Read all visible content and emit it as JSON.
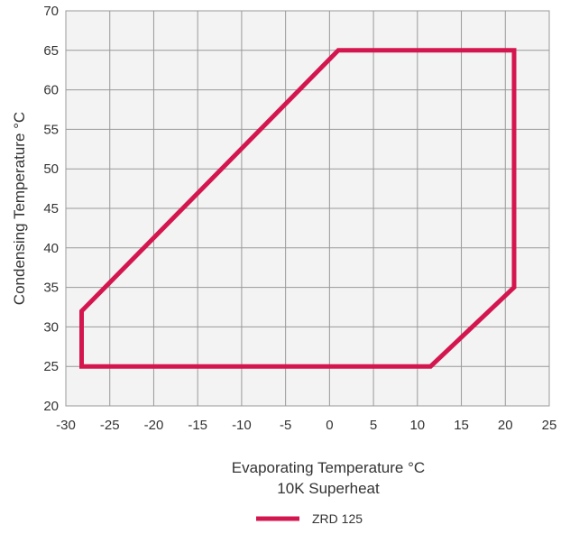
{
  "chart_data": {
    "type": "line",
    "title": "",
    "xlabel": "Evaporating Temperature °C",
    "xlabel_sub": "10K Superheat",
    "ylabel": "Condensing Temperature °C",
    "xlim": [
      -30,
      25
    ],
    "ylim": [
      20,
      70
    ],
    "x_ticks": [
      -30,
      -25,
      -20,
      -15,
      -10,
      -5,
      0,
      5,
      10,
      15,
      20,
      25
    ],
    "y_ticks": [
      20,
      25,
      30,
      35,
      40,
      45,
      50,
      55,
      60,
      65,
      70
    ],
    "x_tick_labels": [
      "-30",
      "-25",
      "-20",
      "-15",
      "-10",
      "-5",
      "0",
      "5",
      "10",
      "15",
      "20",
      "25"
    ],
    "y_tick_labels": [
      "20",
      "25",
      "30",
      "35",
      "40",
      "45",
      "50",
      "55",
      "60",
      "65",
      "70"
    ],
    "grid": true,
    "legend_position": "bottom-center",
    "series": [
      {
        "name": "ZRD 125",
        "color": "#d4164f",
        "closed": true,
        "points": [
          {
            "x": 1,
            "y": 65
          },
          {
            "x": 21,
            "y": 65
          },
          {
            "x": 21,
            "y": 35
          },
          {
            "x": 11.5,
            "y": 25
          },
          {
            "x": -28.2,
            "y": 25
          },
          {
            "x": -28.2,
            "y": 32
          },
          {
            "x": 1,
            "y": 65
          }
        ]
      }
    ]
  }
}
